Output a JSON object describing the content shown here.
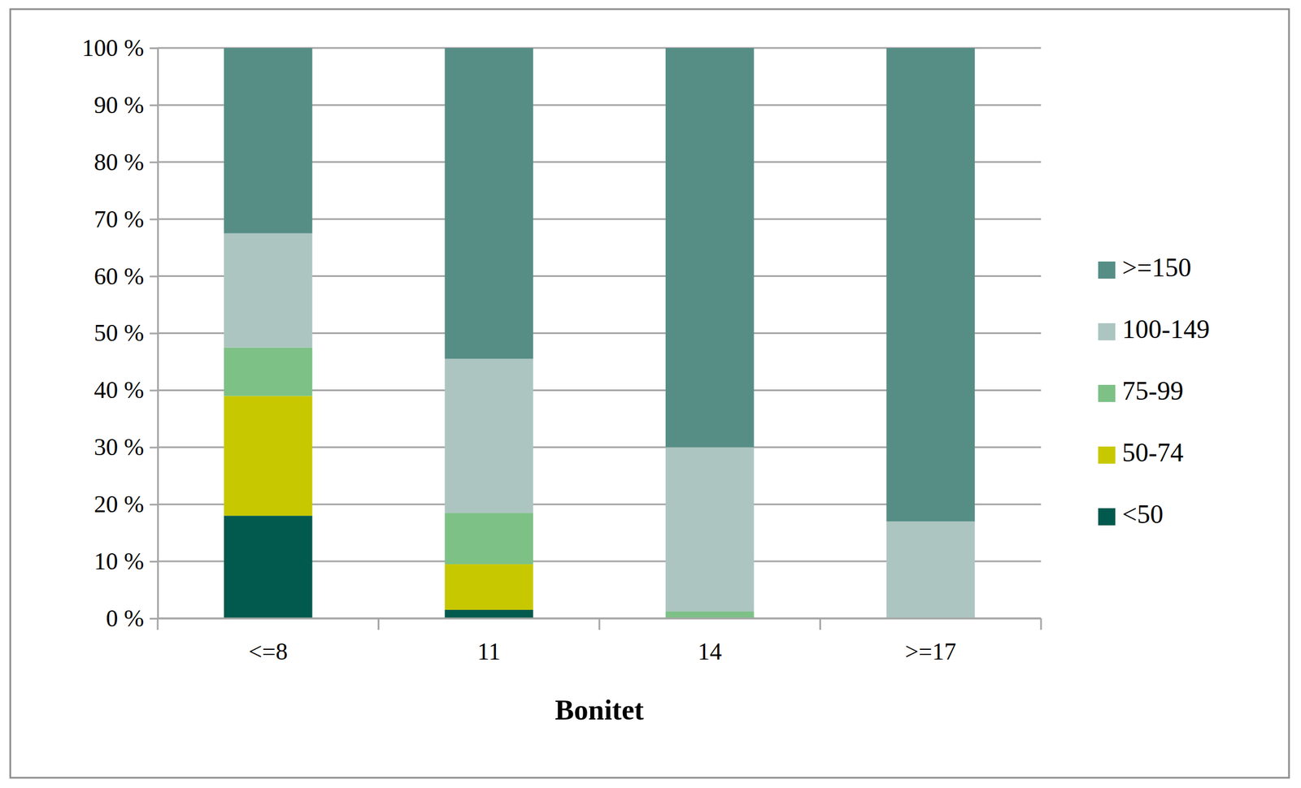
{
  "chart_data": {
    "type": "bar",
    "stacked": true,
    "categories": [
      "<=8",
      "11",
      "14",
      ">=17"
    ],
    "x_label": "Bonitet",
    "series": [
      {
        "name": "<50",
        "color": "#025a4e",
        "values": [
          18,
          1.5,
          0,
          0
        ]
      },
      {
        "name": "50-74",
        "color": "#c8c800",
        "values": [
          21,
          8,
          0,
          0
        ]
      },
      {
        "name": "75-99",
        "color": "#7dc187",
        "values": [
          8.5,
          9,
          1.2,
          0
        ]
      },
      {
        "name": "100-149",
        "color": "#adc5c1",
        "values": [
          20,
          27,
          28.8,
          17
        ]
      },
      {
        "name": ">=150",
        "color": "#568e86",
        "values": [
          32.5,
          54.5,
          70,
          83
        ]
      }
    ],
    "ylim": [
      0,
      100
    ],
    "yticks": [
      {
        "value": 0,
        "label": "0 %"
      },
      {
        "value": 10,
        "label": "10 %"
      },
      {
        "value": 20,
        "label": "20 %"
      },
      {
        "value": 30,
        "label": "30 %"
      },
      {
        "value": 40,
        "label": "40 %"
      },
      {
        "value": 50,
        "label": "50 %"
      },
      {
        "value": 60,
        "label": "60 %"
      },
      {
        "value": 70,
        "label": "70 %"
      },
      {
        "value": 80,
        "label": "80 %"
      },
      {
        "value": 90,
        "label": "90 %"
      },
      {
        "value": 100,
        "label": "100 %"
      }
    ],
    "grid": true,
    "legend": "right"
  }
}
